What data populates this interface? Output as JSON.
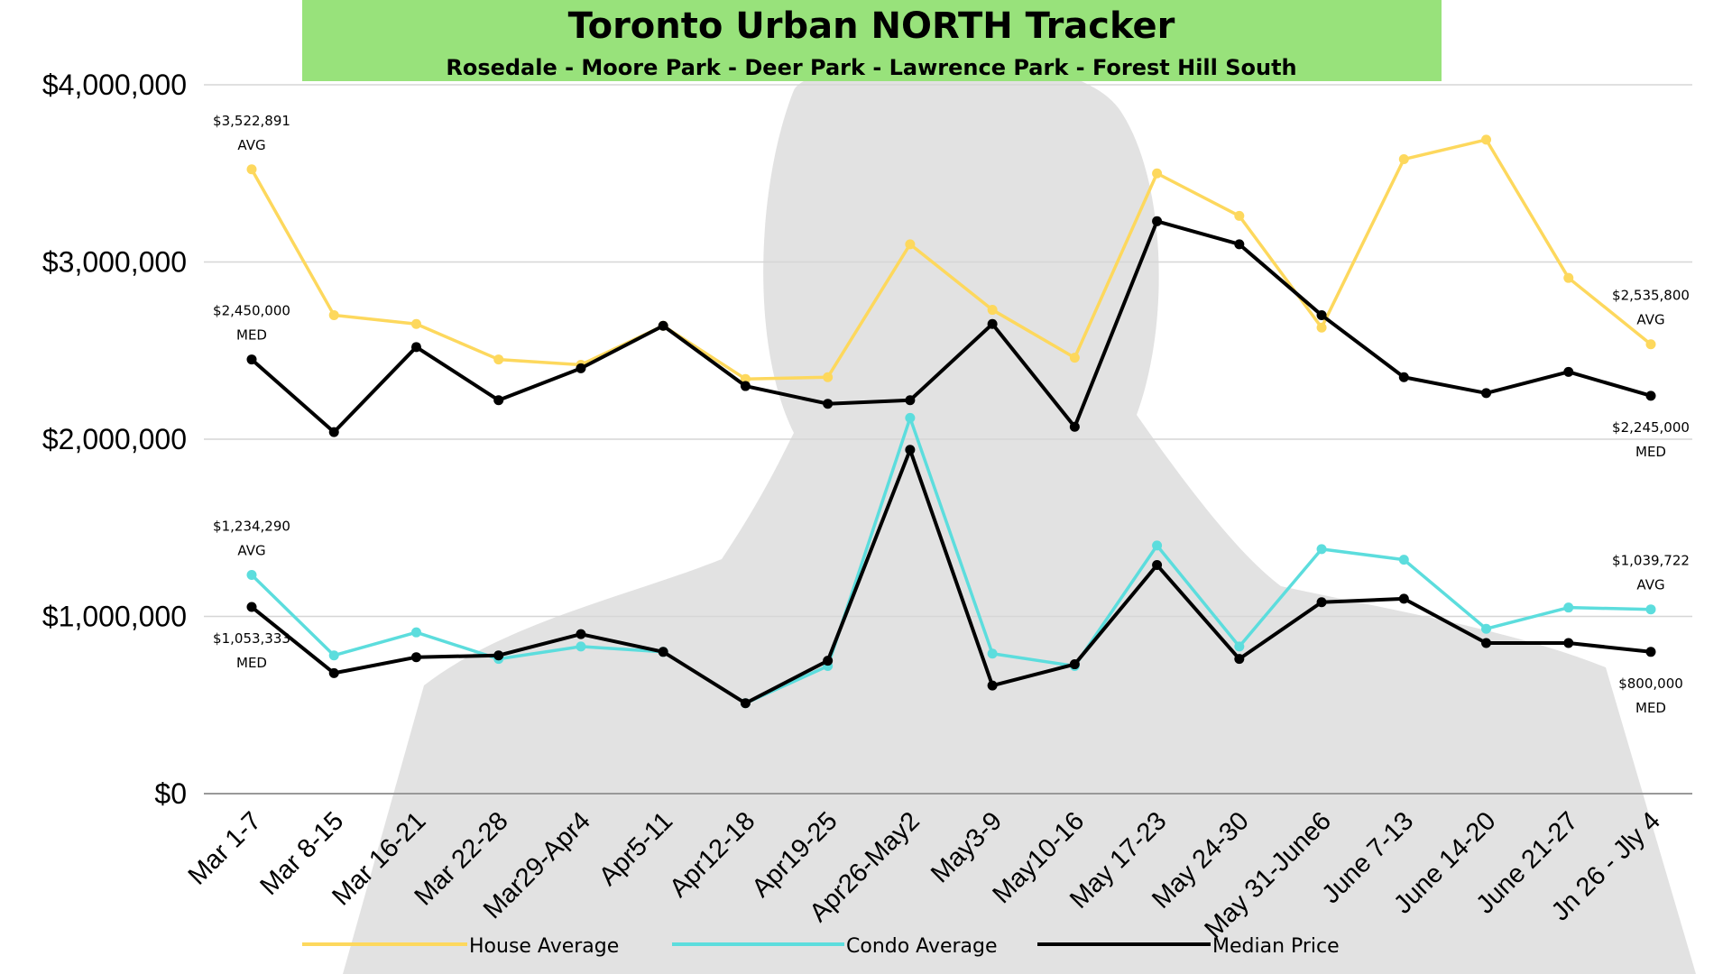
{
  "chart_data": {
    "type": "line",
    "title": "Toronto Urban NORTH Tracker",
    "subtitle": "Rosedale - Moore Park - Deer Park - Lawrence Park - Forest Hill South",
    "categories": [
      "Mar 1-7",
      "Mar 8-15",
      "Mar 16-21",
      "Mar 22-28",
      "Mar29-Apr4",
      "Apr5-11",
      "Apr12-18",
      "Apr19-25",
      "Apr26-May2",
      "May3-9",
      "May10-16",
      "May 17-23",
      "May 24-30",
      "May 31-June6",
      "June 7-13",
      "June 14-20",
      "June 21-27",
      "Jn 26 - Jly 4"
    ],
    "ylim": [
      0,
      4000000
    ],
    "yticks": [
      0,
      1000000,
      2000000,
      3000000,
      4000000
    ],
    "ytick_labels": [
      "$0",
      "$1,000,000",
      "$2,000,000",
      "$3,000,000",
      "$4,000,000"
    ],
    "grid": true,
    "legend_position": "bottom",
    "series": [
      {
        "name": "House Average",
        "color": "#FDD85D",
        "values": [
          3522891,
          2700000,
          2650000,
          2450000,
          2420000,
          2640000,
          2340000,
          2350000,
          3100000,
          2730000,
          2460000,
          3500000,
          3260000,
          2630000,
          3580000,
          3690000,
          2910000,
          2535800
        ]
      },
      {
        "name": "Condo Average",
        "color": "#5CDDDD",
        "values": [
          1234290,
          780000,
          910000,
          760000,
          830000,
          800000,
          510000,
          720000,
          2120000,
          790000,
          720000,
          1400000,
          830000,
          1380000,
          1320000,
          930000,
          1050000,
          1039722
        ]
      },
      {
        "name": "Median Price",
        "color": "#000000",
        "values": [
          2450000,
          2040000,
          2520000,
          2220000,
          2400000,
          2640000,
          2300000,
          2200000,
          2220000,
          2650000,
          2070000,
          3230000,
          3100000,
          2700000,
          2350000,
          2260000,
          2380000,
          2245000
        ]
      },
      {
        "name": "",
        "color": "#000000",
        "values": [
          1053333,
          680000,
          770000,
          780000,
          900000,
          800000,
          510000,
          750000,
          1940000,
          610000,
          730000,
          1290000,
          760000,
          1080000,
          1100000,
          850000,
          850000,
          800000
        ]
      }
    ],
    "annotations": [
      {
        "series": 0,
        "index": 0,
        "lines": [
          "$3,522,891",
          "AVG"
        ],
        "side": "above"
      },
      {
        "series": 2,
        "index": 0,
        "lines": [
          "$2,450,000",
          "MED"
        ],
        "side": "above"
      },
      {
        "series": 1,
        "index": 0,
        "lines": [
          "$1,234,290",
          "AVG"
        ],
        "side": "above"
      },
      {
        "series": 3,
        "index": 0,
        "lines": [
          "$1,053,333",
          "MED"
        ],
        "side": "below"
      },
      {
        "series": 0,
        "index": 17,
        "lines": [
          "$2,535,800",
          "AVG"
        ],
        "side": "above"
      },
      {
        "series": 2,
        "index": 17,
        "lines": [
          "$2,245,000",
          "MED"
        ],
        "side": "below"
      },
      {
        "series": 1,
        "index": 17,
        "lines": [
          "$1,039,722",
          "AVG"
        ],
        "side": "above"
      },
      {
        "series": 3,
        "index": 17,
        "lines": [
          "$800,000",
          "MED"
        ],
        "side": "below"
      }
    ]
  }
}
